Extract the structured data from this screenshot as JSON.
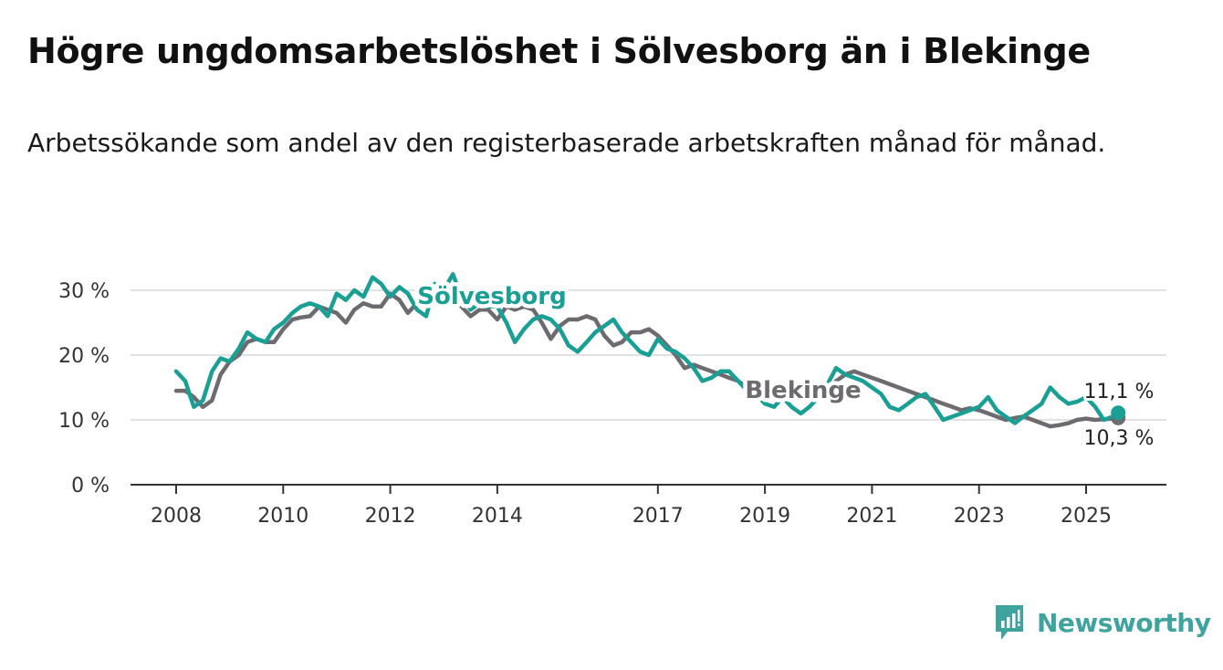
{
  "title": "Högre ungdomsarbetslöshet i Sölvesborg än i Blekinge",
  "subtitle": "Arbetssökande som andel av den registerbaserade arbetskraften månad för månad.",
  "brand": {
    "name": "Newsworthy",
    "color": "#3ea49d"
  },
  "chart_data": {
    "type": "line",
    "ylim": [
      0,
      32
    ],
    "yticks": [
      0,
      10,
      20,
      30
    ],
    "ytick_labels": [
      "0 %",
      "10 %",
      "20 %",
      "30 %"
    ],
    "xlim": [
      2007.6,
      2026.5
    ],
    "xticks": [
      2008,
      2010,
      2012,
      2014,
      2017,
      2019,
      2021,
      2023,
      2025
    ],
    "xtick_labels": [
      "2008",
      "2010",
      "2012",
      "2014",
      "2017",
      "2019",
      "2021",
      "2023",
      "2025"
    ],
    "grid": true,
    "series": [
      {
        "name": "Blekinge",
        "color": "#6e6b70",
        "last_value_label": "10,3 %",
        "points": [
          [
            2008.0,
            14.5
          ],
          [
            2008.17,
            14.5
          ],
          [
            2008.33,
            13.5
          ],
          [
            2008.5,
            12.0
          ],
          [
            2008.67,
            13.0
          ],
          [
            2008.83,
            17.0
          ],
          [
            2009.0,
            19.0
          ],
          [
            2009.17,
            20.0
          ],
          [
            2009.33,
            22.0
          ],
          [
            2009.5,
            22.5
          ],
          [
            2009.67,
            22.0
          ],
          [
            2009.83,
            22.0
          ],
          [
            2010.0,
            24.0
          ],
          [
            2010.17,
            25.5
          ],
          [
            2010.33,
            25.8
          ],
          [
            2010.5,
            26.0
          ],
          [
            2010.67,
            27.5
          ],
          [
            2010.83,
            27.0
          ],
          [
            2011.0,
            26.5
          ],
          [
            2011.17,
            25.0
          ],
          [
            2011.33,
            27.0
          ],
          [
            2011.5,
            28.0
          ],
          [
            2011.67,
            27.5
          ],
          [
            2011.83,
            27.5
          ],
          [
            2012.0,
            29.5
          ],
          [
            2012.17,
            28.5
          ],
          [
            2012.33,
            26.5
          ],
          [
            2012.5,
            28.0
          ],
          [
            2012.67,
            29.5
          ],
          [
            2012.83,
            29.8
          ],
          [
            2013.0,
            29.5
          ],
          [
            2013.17,
            28.5
          ],
          [
            2013.33,
            27.5
          ],
          [
            2013.5,
            26.0
          ],
          [
            2013.67,
            27.0
          ],
          [
            2013.83,
            27.0
          ],
          [
            2014.0,
            25.5
          ],
          [
            2014.17,
            27.5
          ],
          [
            2014.33,
            27.0
          ],
          [
            2014.5,
            27.5
          ],
          [
            2014.67,
            27.0
          ],
          [
            2014.83,
            25.0
          ],
          [
            2015.0,
            22.5
          ],
          [
            2015.17,
            24.5
          ],
          [
            2015.33,
            25.5
          ],
          [
            2015.5,
            25.5
          ],
          [
            2015.67,
            26.0
          ],
          [
            2015.83,
            25.5
          ],
          [
            2016.0,
            23.0
          ],
          [
            2016.17,
            21.5
          ],
          [
            2016.33,
            22.0
          ],
          [
            2016.5,
            23.5
          ],
          [
            2016.67,
            23.5
          ],
          [
            2016.83,
            24.0
          ],
          [
            2017.0,
            23.0
          ],
          [
            2017.17,
            21.5
          ],
          [
            2017.33,
            20.0
          ],
          [
            2017.5,
            18.0
          ],
          [
            2017.67,
            18.5
          ],
          [
            2017.83,
            18.0
          ],
          [
            2018.0,
            17.5
          ],
          [
            2018.17,
            17.0
          ],
          [
            2018.33,
            16.5
          ],
          [
            2018.5,
            16.0
          ],
          [
            2018.67,
            15.0
          ],
          [
            2018.83,
            14.5
          ],
          [
            2019.0,
            14.5
          ],
          [
            2019.17,
            14.0
          ],
          [
            2019.33,
            14.0
          ],
          [
            2019.5,
            13.5
          ],
          [
            2019.67,
            13.5
          ],
          [
            2019.83,
            13.8
          ],
          [
            2020.0,
            14.0
          ],
          [
            2020.17,
            15.0
          ],
          [
            2020.33,
            16.0
          ],
          [
            2020.5,
            17.0
          ],
          [
            2020.67,
            17.5
          ],
          [
            2020.83,
            17.0
          ],
          [
            2021.0,
            16.5
          ],
          [
            2021.17,
            16.0
          ],
          [
            2021.33,
            15.5
          ],
          [
            2021.5,
            15.0
          ],
          [
            2021.67,
            14.5
          ],
          [
            2021.83,
            14.0
          ],
          [
            2022.0,
            13.5
          ],
          [
            2022.17,
            13.0
          ],
          [
            2022.33,
            12.5
          ],
          [
            2022.5,
            12.0
          ],
          [
            2022.67,
            11.5
          ],
          [
            2022.83,
            11.8
          ],
          [
            2023.0,
            11.5
          ],
          [
            2023.17,
            11.0
          ],
          [
            2023.33,
            10.5
          ],
          [
            2023.5,
            10.0
          ],
          [
            2023.67,
            10.3
          ],
          [
            2023.83,
            10.5
          ],
          [
            2024.0,
            10.0
          ],
          [
            2024.17,
            9.5
          ],
          [
            2024.33,
            9.0
          ],
          [
            2024.5,
            9.2
          ],
          [
            2024.67,
            9.5
          ],
          [
            2024.83,
            10.0
          ],
          [
            2025.0,
            10.2
          ],
          [
            2025.17,
            10.0
          ],
          [
            2025.33,
            10.1
          ],
          [
            2025.5,
            10.2
          ],
          [
            2025.6,
            10.3
          ]
        ]
      },
      {
        "name": "Sölvesborg",
        "color": "#1a9f95",
        "last_value_label": "11,1 %",
        "points": [
          [
            2008.0,
            17.5
          ],
          [
            2008.17,
            16.0
          ],
          [
            2008.33,
            12.0
          ],
          [
            2008.5,
            13.0
          ],
          [
            2008.67,
            17.5
          ],
          [
            2008.83,
            19.5
          ],
          [
            2009.0,
            19.0
          ],
          [
            2009.17,
            21.0
          ],
          [
            2009.33,
            23.5
          ],
          [
            2009.5,
            22.5
          ],
          [
            2009.67,
            22.0
          ],
          [
            2009.83,
            24.0
          ],
          [
            2010.0,
            25.0
          ],
          [
            2010.17,
            26.5
          ],
          [
            2010.33,
            27.5
          ],
          [
            2010.5,
            28.0
          ],
          [
            2010.67,
            27.5
          ],
          [
            2010.83,
            26.0
          ],
          [
            2011.0,
            29.5
          ],
          [
            2011.17,
            28.5
          ],
          [
            2011.33,
            30.0
          ],
          [
            2011.5,
            29.0
          ],
          [
            2011.67,
            32.0
          ],
          [
            2011.83,
            31.0
          ],
          [
            2012.0,
            29.0
          ],
          [
            2012.17,
            30.5
          ],
          [
            2012.33,
            29.5
          ],
          [
            2012.5,
            27.0
          ],
          [
            2012.67,
            26.0
          ],
          [
            2012.83,
            31.0
          ],
          [
            2013.0,
            30.0
          ],
          [
            2013.17,
            32.5
          ],
          [
            2013.33,
            29.0
          ],
          [
            2013.5,
            27.0
          ],
          [
            2013.67,
            28.0
          ],
          [
            2013.83,
            27.5
          ],
          [
            2014.0,
            27.5
          ],
          [
            2014.17,
            25.0
          ],
          [
            2014.33,
            22.0
          ],
          [
            2014.5,
            24.0
          ],
          [
            2014.67,
            25.5
          ],
          [
            2014.83,
            26.0
          ],
          [
            2015.0,
            25.5
          ],
          [
            2015.17,
            24.0
          ],
          [
            2015.33,
            21.5
          ],
          [
            2015.5,
            20.5
          ],
          [
            2015.67,
            22.0
          ],
          [
            2015.83,
            23.5
          ],
          [
            2016.0,
            24.5
          ],
          [
            2016.17,
            25.5
          ],
          [
            2016.33,
            23.5
          ],
          [
            2016.5,
            22.0
          ],
          [
            2016.67,
            20.5
          ],
          [
            2016.83,
            20.0
          ],
          [
            2017.0,
            22.5
          ],
          [
            2017.17,
            21.0
          ],
          [
            2017.33,
            20.5
          ],
          [
            2017.5,
            19.5
          ],
          [
            2017.67,
            18.0
          ],
          [
            2017.83,
            16.0
          ],
          [
            2018.0,
            16.5
          ],
          [
            2018.17,
            17.5
          ],
          [
            2018.33,
            17.5
          ],
          [
            2018.5,
            16.0
          ],
          [
            2018.67,
            14.5
          ],
          [
            2018.83,
            14.0
          ],
          [
            2019.0,
            12.5
          ],
          [
            2019.17,
            12.0
          ],
          [
            2019.33,
            13.5
          ],
          [
            2019.5,
            12.0
          ],
          [
            2019.67,
            11.0
          ],
          [
            2019.83,
            12.0
          ],
          [
            2020.0,
            13.5
          ],
          [
            2020.17,
            15.5
          ],
          [
            2020.33,
            18.0
          ],
          [
            2020.5,
            17.0
          ],
          [
            2020.67,
            16.5
          ],
          [
            2020.83,
            16.0
          ],
          [
            2021.0,
            15.0
          ],
          [
            2021.17,
            14.0
          ],
          [
            2021.33,
            12.0
          ],
          [
            2021.5,
            11.5
          ],
          [
            2021.67,
            12.5
          ],
          [
            2021.83,
            13.5
          ],
          [
            2022.0,
            14.0
          ],
          [
            2022.17,
            12.0
          ],
          [
            2022.33,
            10.0
          ],
          [
            2022.5,
            10.5
          ],
          [
            2022.67,
            11.0
          ],
          [
            2022.83,
            11.5
          ],
          [
            2023.0,
            12.0
          ],
          [
            2023.17,
            13.5
          ],
          [
            2023.33,
            11.5
          ],
          [
            2023.5,
            10.5
          ],
          [
            2023.67,
            9.5
          ],
          [
            2023.83,
            10.5
          ],
          [
            2024.0,
            11.5
          ],
          [
            2024.17,
            12.5
          ],
          [
            2024.33,
            15.0
          ],
          [
            2024.5,
            13.5
          ],
          [
            2024.67,
            12.5
          ],
          [
            2024.83,
            12.8
          ],
          [
            2025.0,
            13.5
          ],
          [
            2025.17,
            12.0
          ],
          [
            2025.33,
            10.0
          ],
          [
            2025.5,
            10.5
          ],
          [
            2025.6,
            11.1
          ]
        ]
      }
    ]
  }
}
